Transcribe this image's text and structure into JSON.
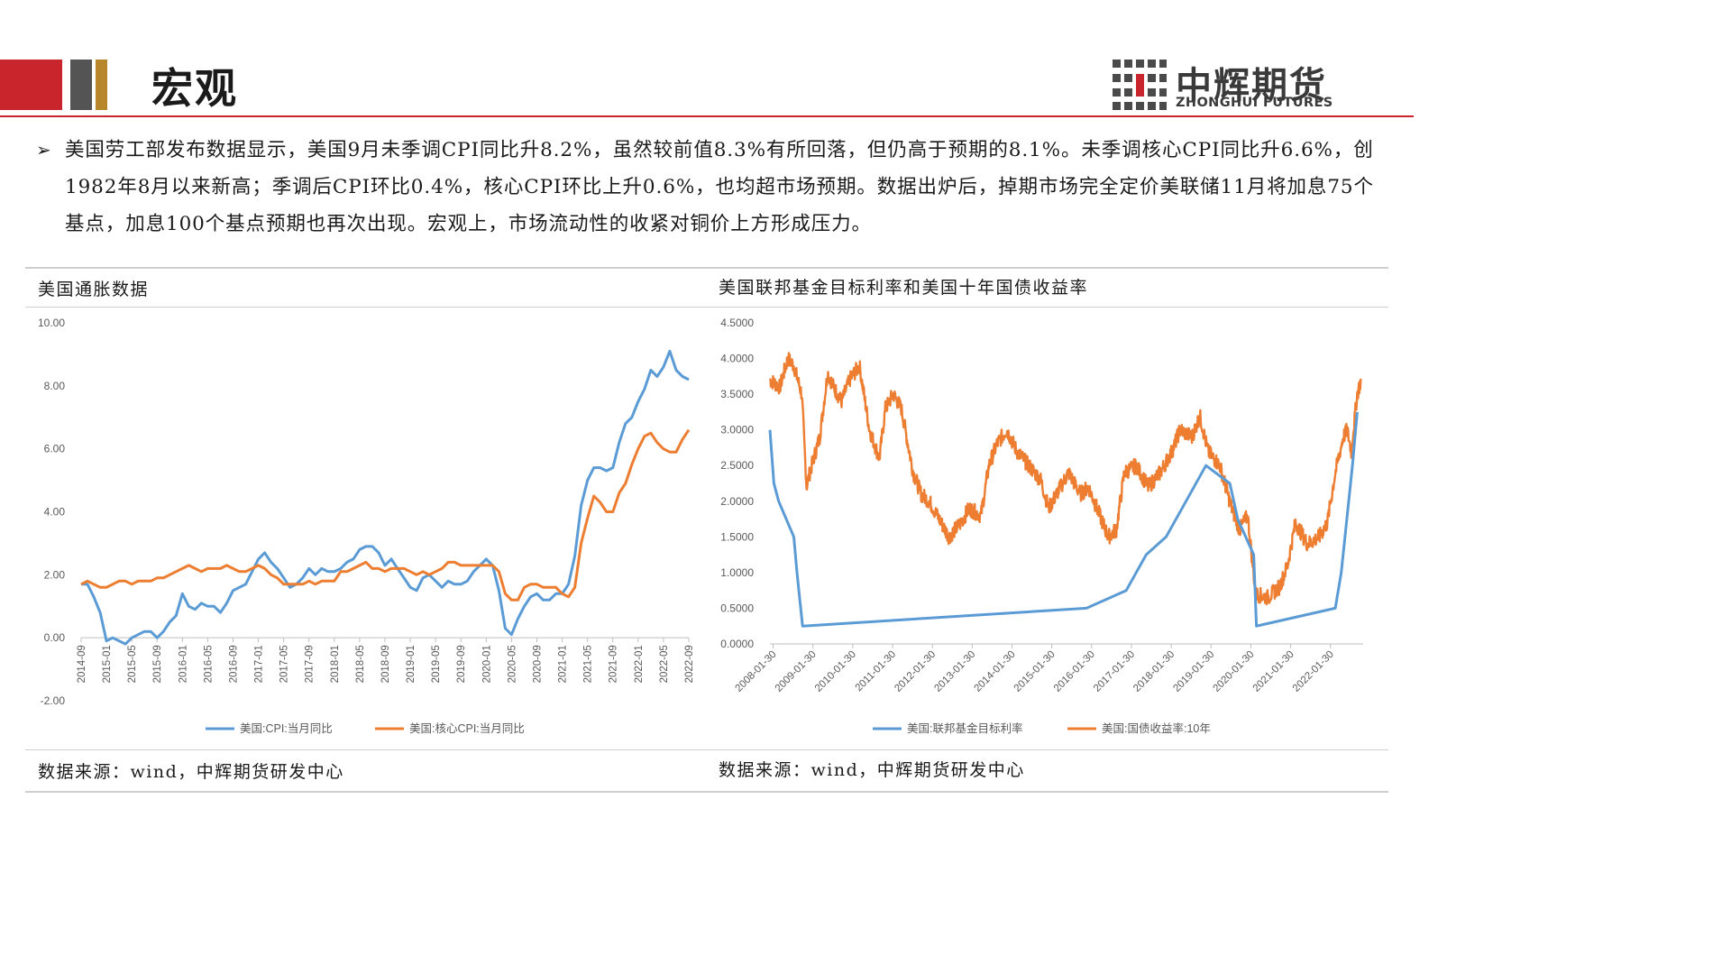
{
  "header": {
    "title": "宏观",
    "logo_cn": "中辉期货",
    "logo_en": "ZHONGHUI FUTURES"
  },
  "summary": {
    "bullet": "➢",
    "text": "美国劳工部发布数据显示，美国9月未季调CPI同比升8.2%，虽然较前值8.3%有所回落，但仍高于预期的8.1%。未季调核心CPI同比升6.6%，创1982年8月以来新高；季调后CPI环比0.4%，核心CPI环比上升0.6%，也均超市场预期。数据出炉后，掉期市场完全定价美联储11月将加息75个基点，加息100个基点预期也再次出现。宏观上，市场流动性的收紧对铜价上方形成压力。"
  },
  "left_panel": {
    "title": "美国通胀数据",
    "source": "数据来源：wind，中辉期货研发中心"
  },
  "right_panel": {
    "title": "美国联邦基金目标利率和美国十年国债收益率",
    "source": "数据来源：wind，中辉期货研发中心"
  },
  "colors": {
    "blue": "#5b9bd5",
    "orange": "#ed7d31",
    "red": "#c8262c",
    "gray": "#545454",
    "gold": "#b8862b"
  },
  "chart_data": [
    {
      "type": "line",
      "title": "美国通胀数据",
      "ylim": [
        -2,
        10
      ],
      "yticks": [
        "10.00",
        "8.00",
        "6.00",
        "4.00",
        "2.00",
        "0.00",
        "-2.00"
      ],
      "x_ticks": [
        "2014-09",
        "2015-01",
        "2015-05",
        "2015-09",
        "2016-01",
        "2016-05",
        "2016-09",
        "2017-01",
        "2017-05",
        "2017-09",
        "2018-01",
        "2018-05",
        "2018-09",
        "2019-01",
        "2019-05",
        "2019-09",
        "2020-01",
        "2020-05",
        "2020-09",
        "2021-01",
        "2021-05",
        "2021-09",
        "2022-01",
        "2022-05",
        "2022-09"
      ],
      "x_start": "2014-09",
      "legend_position": "bottom",
      "series": [
        {
          "name": "美国:CPI:当月同比",
          "color": "#5b9bd5",
          "values": [
            1.7,
            1.7,
            1.3,
            0.8,
            -0.1,
            0.0,
            -0.1,
            -0.2,
            0.0,
            0.1,
            0.2,
            0.2,
            0.0,
            0.2,
            0.5,
            0.7,
            1.4,
            1.0,
            0.9,
            1.1,
            1.0,
            1.0,
            0.8,
            1.1,
            1.5,
            1.6,
            1.7,
            2.1,
            2.5,
            2.7,
            2.4,
            2.2,
            1.9,
            1.6,
            1.7,
            1.9,
            2.2,
            2.0,
            2.2,
            2.1,
            2.1,
            2.2,
            2.4,
            2.5,
            2.8,
            2.9,
            2.9,
            2.7,
            2.3,
            2.5,
            2.2,
            1.9,
            1.6,
            1.5,
            1.9,
            2.0,
            1.8,
            1.6,
            1.8,
            1.7,
            1.7,
            1.8,
            2.1,
            2.3,
            2.5,
            2.3,
            1.5,
            0.3,
            0.1,
            0.6,
            1.0,
            1.3,
            1.4,
            1.2,
            1.2,
            1.4,
            1.4,
            1.7,
            2.6,
            4.2,
            5.0,
            5.4,
            5.4,
            5.3,
            5.4,
            6.2,
            6.8,
            7.0,
            7.5,
            7.9,
            8.5,
            8.3,
            8.6,
            9.1,
            8.5,
            8.3,
            8.2
          ]
        },
        {
          "name": "美国:核心CPI:当月同比",
          "color": "#ed7d31",
          "values": [
            1.7,
            1.8,
            1.7,
            1.6,
            1.6,
            1.7,
            1.8,
            1.8,
            1.7,
            1.8,
            1.8,
            1.8,
            1.9,
            1.9,
            2.0,
            2.1,
            2.2,
            2.3,
            2.2,
            2.1,
            2.2,
            2.2,
            2.2,
            2.3,
            2.2,
            2.1,
            2.1,
            2.2,
            2.3,
            2.2,
            2.0,
            1.9,
            1.7,
            1.7,
            1.7,
            1.7,
            1.8,
            1.7,
            1.8,
            1.8,
            1.8,
            2.1,
            2.1,
            2.2,
            2.3,
            2.4,
            2.2,
            2.2,
            2.1,
            2.2,
            2.2,
            2.2,
            2.1,
            2.0,
            2.1,
            2.0,
            2.1,
            2.2,
            2.4,
            2.4,
            2.3,
            2.3,
            2.3,
            2.3,
            2.3,
            2.3,
            2.1,
            1.4,
            1.2,
            1.2,
            1.6,
            1.7,
            1.7,
            1.6,
            1.6,
            1.6,
            1.4,
            1.3,
            1.6,
            3.0,
            3.8,
            4.5,
            4.3,
            4.0,
            4.0,
            4.6,
            4.9,
            5.5,
            6.0,
            6.4,
            6.5,
            6.2,
            6.0,
            5.9,
            5.9,
            6.3,
            6.6
          ]
        }
      ]
    },
    {
      "type": "line",
      "title": "美国联邦基金目标利率和美国十年国债收益率",
      "ylim": [
        0,
        4.5
      ],
      "yticks": [
        "4.5000",
        "4.0000",
        "3.5000",
        "3.0000",
        "2.5000",
        "2.0000",
        "1.5000",
        "1.0000",
        "0.5000",
        "0.0000"
      ],
      "x_ticks": [
        "2008-01-30",
        "2009-01-30",
        "2010-01-30",
        "2011-01-30",
        "2012-01-30",
        "2013-01-30",
        "2014-01-30",
        "2015-01-30",
        "2016-01-30",
        "2017-01-30",
        "2018-01-30",
        "2019-01-30",
        "2020-01-30",
        "2021-01-30",
        "2022-01-30"
      ],
      "x_range": [
        2008.0,
        2022.9
      ],
      "legend_position": "bottom",
      "series": [
        {
          "name": "美国:联邦基金目标利率",
          "color": "#5b9bd5",
          "points": [
            [
              2008.0,
              3.0
            ],
            [
              2008.1,
              2.25
            ],
            [
              2008.22,
              2.0
            ],
            [
              2008.6,
              1.5
            ],
            [
              2008.68,
              1.0
            ],
            [
              2008.82,
              0.25
            ],
            [
              2015.95,
              0.5
            ],
            [
              2016.95,
              0.75
            ],
            [
              2017.45,
              1.25
            ],
            [
              2017.95,
              1.5
            ],
            [
              2018.45,
              2.0
            ],
            [
              2018.95,
              2.5
            ],
            [
              2019.55,
              2.25
            ],
            [
              2019.75,
              1.75
            ],
            [
              2020.15,
              1.25
            ],
            [
              2020.22,
              0.25
            ],
            [
              2022.2,
              0.5
            ],
            [
              2022.35,
              1.0
            ],
            [
              2022.63,
              2.5
            ],
            [
              2022.75,
              3.25
            ]
          ]
        },
        {
          "name": "美国:国债收益率:10年",
          "color": "#ed7d31",
          "points": [
            [
              2008.0,
              3.7
            ],
            [
              2008.25,
              3.6
            ],
            [
              2008.45,
              4.0
            ],
            [
              2008.6,
              3.9
            ],
            [
              2008.8,
              3.5
            ],
            [
              2008.92,
              2.2
            ],
            [
              2009.0,
              2.4
            ],
            [
              2009.25,
              2.9
            ],
            [
              2009.45,
              3.8
            ],
            [
              2009.6,
              3.6
            ],
            [
              2009.8,
              3.4
            ],
            [
              2010.0,
              3.7
            ],
            [
              2010.25,
              3.9
            ],
            [
              2010.5,
              3.0
            ],
            [
              2010.75,
              2.6
            ],
            [
              2010.9,
              3.3
            ],
            [
              2011.1,
              3.5
            ],
            [
              2011.3,
              3.3
            ],
            [
              2011.6,
              2.4
            ],
            [
              2011.8,
              2.1
            ],
            [
              2012.0,
              2.0
            ],
            [
              2012.5,
              1.5
            ],
            [
              2012.8,
              1.7
            ],
            [
              2013.0,
              1.9
            ],
            [
              2013.3,
              1.8
            ],
            [
              2013.5,
              2.5
            ],
            [
              2013.7,
              2.8
            ],
            [
              2013.95,
              3.0
            ],
            [
              2014.2,
              2.7
            ],
            [
              2014.5,
              2.5
            ],
            [
              2014.8,
              2.3
            ],
            [
              2015.0,
              1.9
            ],
            [
              2015.3,
              2.2
            ],
            [
              2015.5,
              2.4
            ],
            [
              2015.8,
              2.1
            ],
            [
              2016.0,
              2.2
            ],
            [
              2016.5,
              1.5
            ],
            [
              2016.7,
              1.6
            ],
            [
              2016.9,
              2.4
            ],
            [
              2017.2,
              2.5
            ],
            [
              2017.5,
              2.2
            ],
            [
              2017.8,
              2.4
            ],
            [
              2018.1,
              2.7
            ],
            [
              2018.3,
              3.0
            ],
            [
              2018.6,
              2.9
            ],
            [
              2018.8,
              3.2
            ],
            [
              2019.0,
              2.7
            ],
            [
              2019.3,
              2.5
            ],
            [
              2019.6,
              1.9
            ],
            [
              2019.8,
              1.6
            ],
            [
              2020.0,
              1.8
            ],
            [
              2020.2,
              0.7
            ],
            [
              2020.5,
              0.65
            ],
            [
              2020.8,
              0.8
            ],
            [
              2021.0,
              1.1
            ],
            [
              2021.2,
              1.7
            ],
            [
              2021.5,
              1.4
            ],
            [
              2021.8,
              1.5
            ],
            [
              2022.0,
              1.7
            ],
            [
              2022.2,
              2.4
            ],
            [
              2022.4,
              2.9
            ],
            [
              2022.5,
              3.0
            ],
            [
              2022.6,
              2.7
            ],
            [
              2022.75,
              3.5
            ],
            [
              2022.85,
              3.7
            ]
          ]
        }
      ]
    }
  ]
}
